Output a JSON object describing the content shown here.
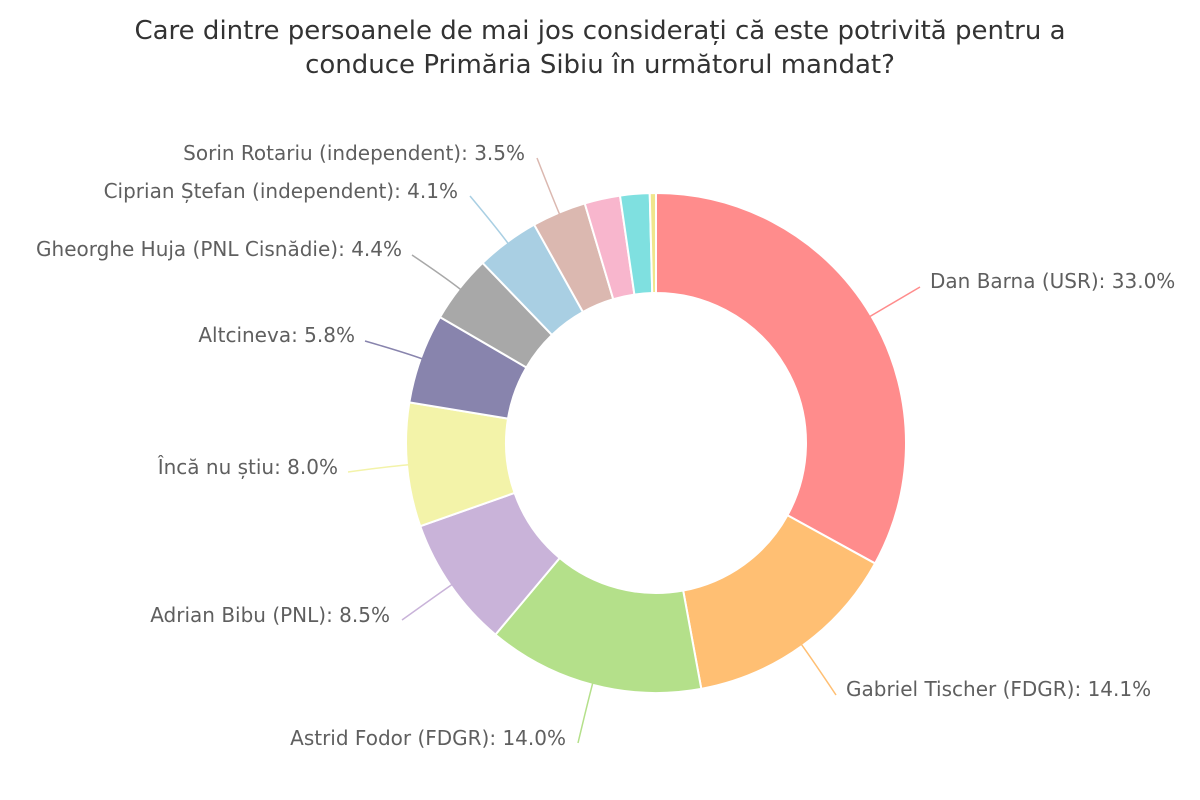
{
  "chart_data": {
    "type": "pie",
    "variant": "donut",
    "title": "Care dintre persoanele de mai jos considerați că este potrivită pentru a\nconduce Primăria Sibiu în următorul mandat?",
    "unit": "%",
    "slices": [
      {
        "name": "Dan Barna (USR)",
        "value": 33.0,
        "color": "#ff8c8c",
        "labeled": true
      },
      {
        "name": "Gabriel Tischer (FDGR)",
        "value": 14.1,
        "color": "#ffbf73",
        "labeled": true
      },
      {
        "name": "Astrid Fodor (FDGR)",
        "value": 14.0,
        "color": "#b4e08a",
        "labeled": true
      },
      {
        "name": "Adrian Bibu (PNL)",
        "value": 8.5,
        "color": "#c9b3d9",
        "labeled": true
      },
      {
        "name": "Încă nu știu",
        "value": 8.0,
        "color": "#f3f3a9",
        "labeled": true
      },
      {
        "name": "Altcineva",
        "value": 5.8,
        "color": "#8884ad",
        "labeled": true
      },
      {
        "name": "Gheorghe Huja (PNL Cisnădie)",
        "value": 4.4,
        "color": "#a8a8a8",
        "labeled": true
      },
      {
        "name": "Ciprian Ștefan (independent)",
        "value": 4.1,
        "color": "#a9cfe3",
        "labeled": true
      },
      {
        "name": "Sorin Rotariu (independent)",
        "value": 3.5,
        "color": "#dbb8b0",
        "labeled": true
      },
      {
        "name": "",
        "value": 2.3,
        "color": "#f8b6cd",
        "labeled": false
      },
      {
        "name": "",
        "value": 1.9,
        "color": "#7fe0e0",
        "labeled": false
      },
      {
        "name": "",
        "value": 0.4,
        "color": "#f0e68c",
        "labeled": false
      }
    ]
  }
}
